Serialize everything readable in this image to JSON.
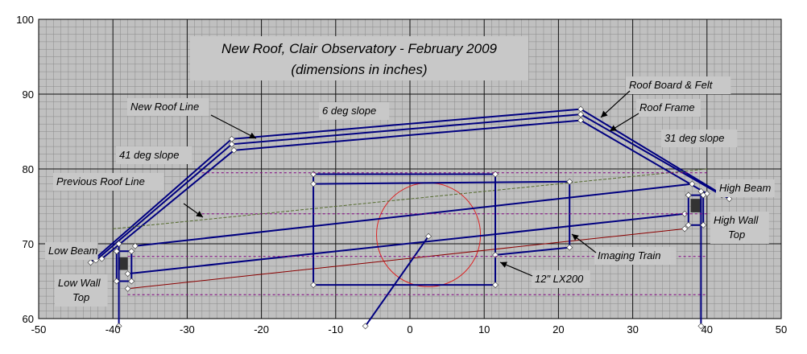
{
  "chart_data": {
    "type": "line",
    "title": "New Roof, Clair Observatory - February 2009",
    "subtitle": "(dimensions in inches)",
    "xlim": [
      -50,
      50
    ],
    "ylim": [
      60,
      100
    ],
    "x_ticks": [
      "-50",
      "-40",
      "-30",
      "-20",
      "-10",
      "0",
      "10",
      "20",
      "30",
      "40",
      "50"
    ],
    "y_ticks": [
      "60",
      "70",
      "80",
      "90",
      "100"
    ],
    "grid": true,
    "minor_grid": true,
    "plot_background": "#c0c0c0",
    "annotations": [
      {
        "id": "new-roof-line",
        "lines": [
          "New Roof Line"
        ]
      },
      {
        "id": "six-deg",
        "lines": [
          "6 deg slope"
        ]
      },
      {
        "id": "forty-one-deg",
        "lines": [
          "41 deg slope"
        ]
      },
      {
        "id": "thirty-one-deg",
        "lines": [
          "31 deg slope"
        ]
      },
      {
        "id": "roof-board",
        "lines": [
          "Roof Board & Felt"
        ]
      },
      {
        "id": "roof-frame",
        "lines": [
          "Roof Frame"
        ]
      },
      {
        "id": "previous-roof",
        "lines": [
          "Previous Roof Line"
        ]
      },
      {
        "id": "high-beam",
        "lines": [
          "High Beam"
        ]
      },
      {
        "id": "high-wall",
        "lines": [
          "High Wall",
          "Top"
        ]
      },
      {
        "id": "low-beam",
        "lines": [
          "Low Beam"
        ]
      },
      {
        "id": "low-wall",
        "lines": [
          "Low Wall",
          "Top"
        ]
      },
      {
        "id": "imaging-train",
        "lines": [
          "Imaging Train"
        ]
      },
      {
        "id": "lx200",
        "lines": [
          "12\" LX200"
        ]
      }
    ],
    "series": [
      {
        "id": "roof-board",
        "color": "#000080",
        "width": 2,
        "points": [
          [
            -43,
            67.5
          ],
          [
            -24,
            84
          ],
          [
            23,
            88
          ],
          [
            43,
            76
          ]
        ]
      },
      {
        "id": "roof-frame",
        "color": "#000080",
        "width": 2,
        "points": [
          [
            -42.3,
            67.8
          ],
          [
            -24,
            83.3
          ],
          [
            23,
            87.3
          ],
          [
            42,
            76.5
          ]
        ]
      },
      {
        "id": "roof-inner",
        "color": "#000080",
        "width": 2,
        "points": [
          [
            -41.5,
            68
          ],
          [
            -23.7,
            82.5
          ],
          [
            23,
            86.5
          ],
          [
            40,
            76.7
          ]
        ]
      },
      {
        "id": "previous-roof",
        "color": "#556b2f",
        "width": 1,
        "dash": "4 2",
        "points": [
          [
            -40,
            72
          ],
          [
            40,
            80
          ]
        ]
      },
      {
        "id": "low-beam-line",
        "color": "#000080",
        "width": 2,
        "points": [
          [
            -37,
            69.7
          ],
          [
            38,
            78
          ]
        ]
      },
      {
        "id": "scope-top",
        "color": "#000080",
        "width": 2,
        "points": [
          [
            -38,
            66
          ],
          [
            37,
            74
          ]
        ]
      },
      {
        "id": "scope-bottom",
        "color": "#8b0000",
        "width": 1,
        "points": [
          [
            -38,
            64
          ],
          [
            37,
            72
          ]
        ]
      },
      {
        "id": "scope-box",
        "color": "#000080",
        "width": 2,
        "points": [
          [
            -13,
            79.3
          ],
          [
            11.5,
            79.3
          ],
          [
            11.5,
            64.5
          ],
          [
            -13,
            64.5
          ],
          [
            -13,
            79.3
          ]
        ]
      },
      {
        "id": "scope-box-inner",
        "color": "#000080",
        "width": 2,
        "points": [
          [
            -13,
            78
          ],
          [
            21.5,
            78.3
          ],
          [
            21.5,
            69.5
          ],
          [
            11.5,
            68.5
          ]
        ]
      },
      {
        "id": "pier",
        "color": "#000080",
        "width": 2,
        "points": [
          [
            2.5,
            71
          ],
          [
            -6,
            59
          ]
        ]
      },
      {
        "id": "left-wall",
        "color": "#000080",
        "width": 2,
        "points": [
          [
            -39.2,
            70
          ],
          [
            -39.2,
            59
          ]
        ]
      },
      {
        "id": "right-wall",
        "color": "#000080",
        "width": 2,
        "points": [
          [
            39.2,
            77
          ],
          [
            39.2,
            59
          ]
        ]
      },
      {
        "id": "left-bracket",
        "color": "#000080",
        "width": 2,
        "points": [
          [
            -39.5,
            69
          ],
          [
            -37.5,
            69
          ],
          [
            -37.5,
            65
          ],
          [
            -39.5,
            65
          ],
          [
            -39.5,
            69
          ]
        ]
      },
      {
        "id": "right-bracket",
        "color": "#000080",
        "width": 2,
        "points": [
          [
            37.5,
            76.5
          ],
          [
            39.5,
            76.5
          ],
          [
            39.5,
            72.5
          ],
          [
            37.5,
            72.5
          ],
          [
            37.5,
            76.5
          ]
        ]
      },
      {
        "id": "dash-top",
        "color": "#800080",
        "width": 1,
        "dash": "3 3",
        "points": [
          [
            -28,
            79.5
          ],
          [
            40,
            79.5
          ]
        ]
      },
      {
        "id": "dash-mid",
        "color": "#800080",
        "width": 1,
        "dash": "3 3",
        "points": [
          [
            -28,
            74
          ],
          [
            40,
            74
          ]
        ]
      },
      {
        "id": "dash-low",
        "color": "#800080",
        "width": 1,
        "dash": "3 3",
        "points": [
          [
            -38,
            68.3
          ],
          [
            40,
            68.3
          ]
        ]
      },
      {
        "id": "dash-bottom",
        "color": "#800080",
        "width": 1,
        "dash": "3 3",
        "points": [
          [
            -38,
            63.2
          ],
          [
            40,
            63.2
          ]
        ]
      }
    ],
    "circle": {
      "center": [
        2.5,
        71.2
      ],
      "radius": 7,
      "color": "#dd2222"
    },
    "filled_blocks": [
      {
        "x": [
          -39.3,
          -38
        ],
        "y": [
          66.5,
          68.2
        ]
      },
      {
        "x": [
          37.8,
          39.1
        ],
        "y": [
          74.2,
          76
        ]
      }
    ]
  }
}
